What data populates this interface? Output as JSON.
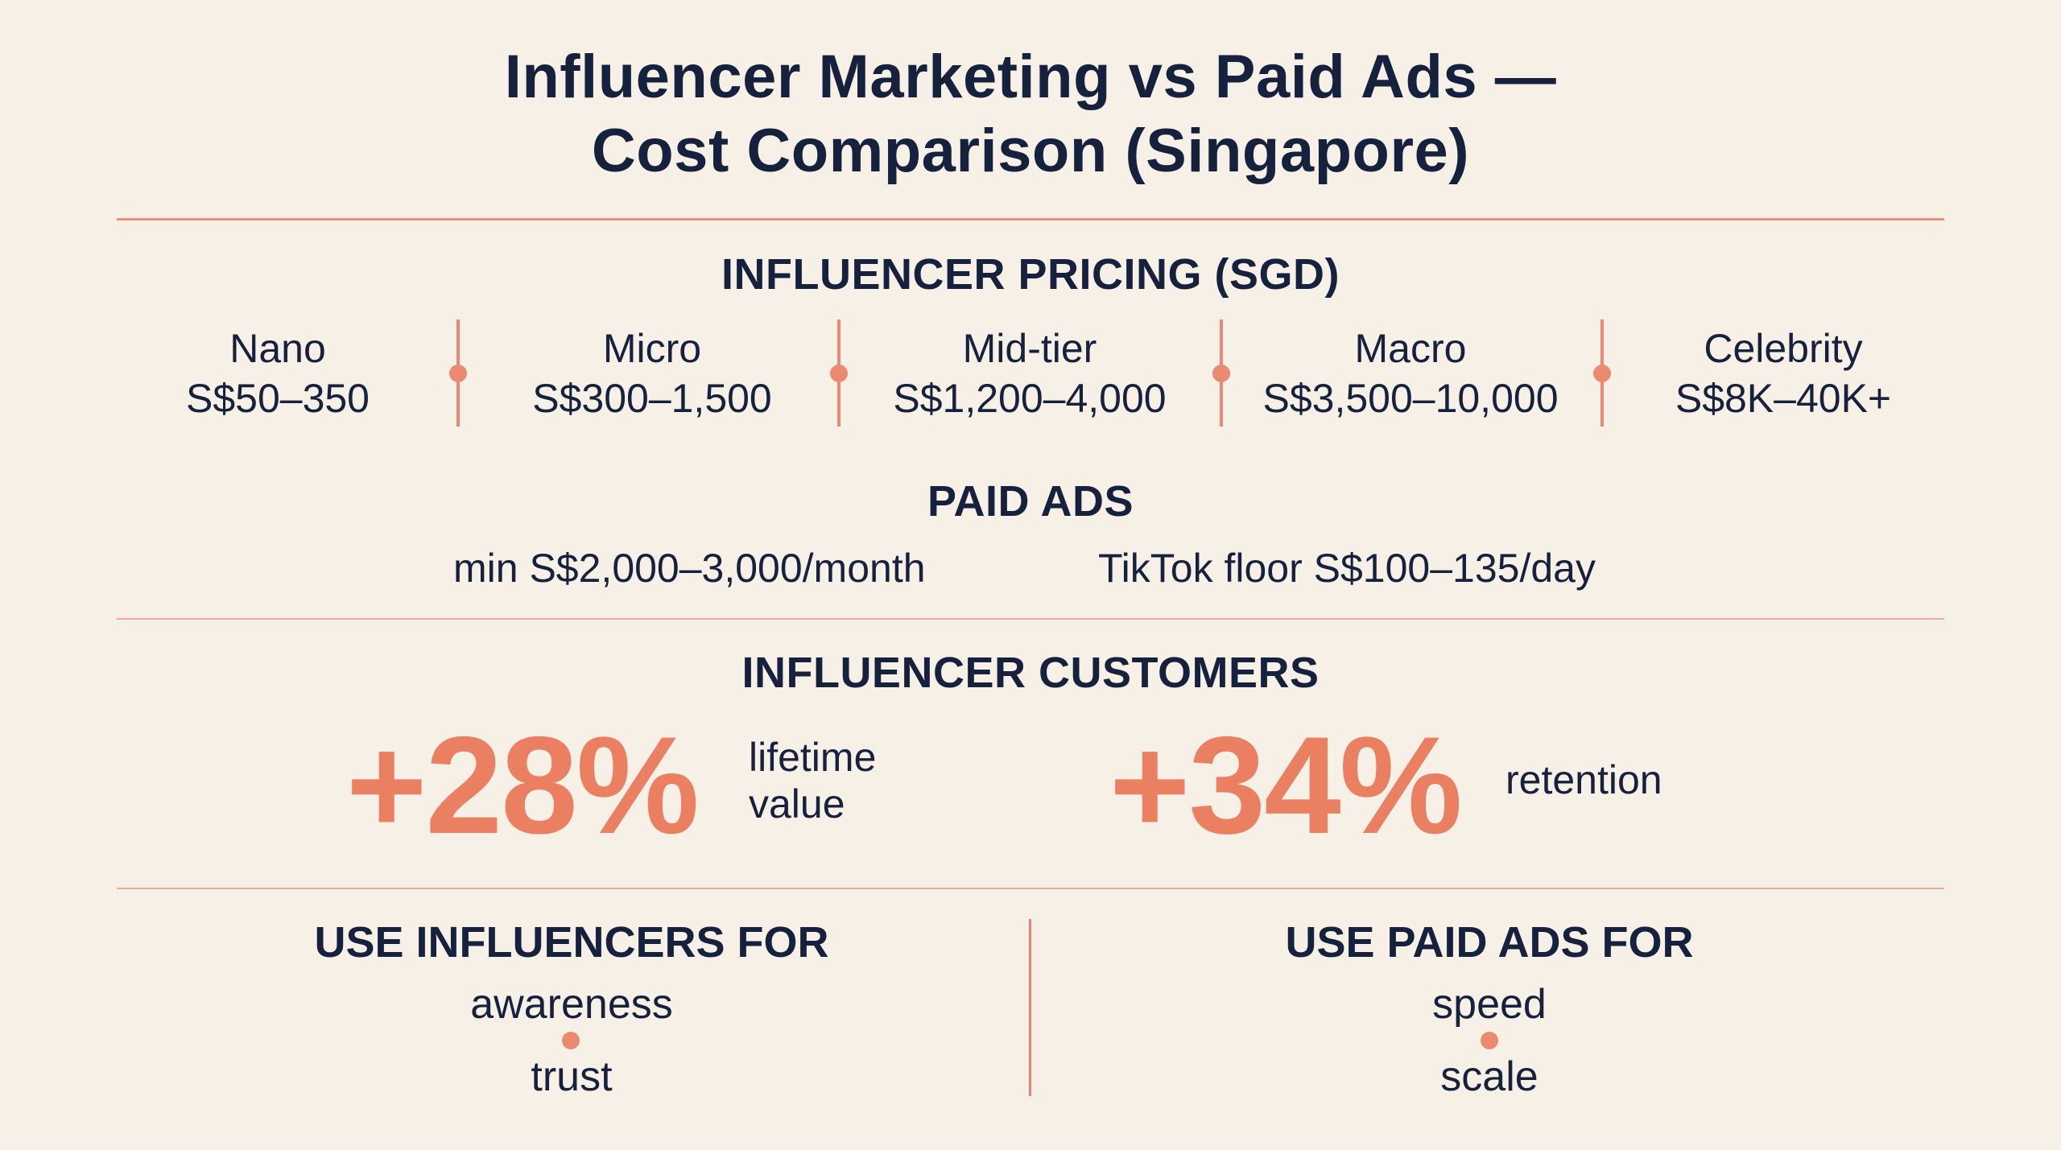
{
  "title_line1": "Influencer Marketing vs Paid Ads —",
  "title_line2": "Cost Comparison (Singapore)",
  "pricing": {
    "heading": "INFLUENCER PRICING (SGD)",
    "tiers": [
      {
        "name": "Nano",
        "price": "S$50–350"
      },
      {
        "name": "Micro",
        "price": "S$300–1,500"
      },
      {
        "name": "Mid-tier",
        "price": "S$1,200–4,000"
      },
      {
        "name": "Macro",
        "price": "S$3,500–10,000"
      },
      {
        "name": "Celebrity",
        "price": "S$8K–40K+"
      }
    ]
  },
  "paid_ads": {
    "heading": "PAID ADS",
    "min_spend": "min S$2,000–3,000/month",
    "tiktok_floor": "TikTok floor S$100–135/day"
  },
  "customers": {
    "heading": "INFLUENCER CUSTOMERS",
    "stat1_value": "+28%",
    "stat1_label_line1": "lifetime",
    "stat1_label_line2": "value",
    "stat2_value": "+34%",
    "stat2_label": "retention"
  },
  "use_influencers": {
    "heading": "USE INFLUENCERS FOR",
    "item1": "awareness",
    "item2": "trust"
  },
  "use_paid": {
    "heading": "USE PAID ADS FOR",
    "item1": "speed",
    "item2": "scale"
  },
  "colors": {
    "background": "#f6f0e6",
    "navy": "#16213e",
    "accent": "#ea7f61"
  }
}
